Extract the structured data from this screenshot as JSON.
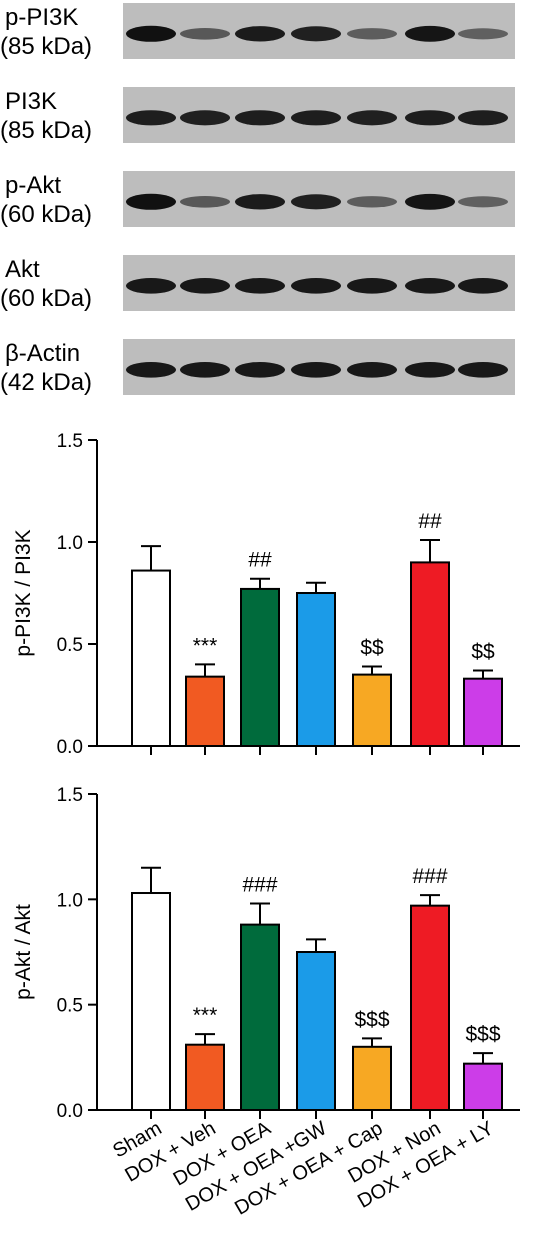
{
  "blots": [
    {
      "name": "p-PI3K",
      "size": "(85 kDa)",
      "intensities": [
        1.0,
        0.45,
        0.92,
        0.88,
        0.42,
        0.98,
        0.38
      ]
    },
    {
      "name": "PI3K",
      "size": "(85 kDa)",
      "intensities": [
        0.9,
        0.88,
        0.9,
        0.9,
        0.88,
        0.9,
        0.9
      ]
    },
    {
      "name": "p-Akt",
      "size": "(60 kDa)",
      "intensities": [
        1.0,
        0.45,
        0.92,
        0.88,
        0.42,
        0.98,
        0.38
      ]
    },
    {
      "name": "Akt",
      "size": "(60 kDa)",
      "intensities": [
        0.95,
        0.95,
        0.95,
        0.95,
        0.95,
        0.95,
        0.95
      ]
    },
    {
      "name": "β-Actin",
      "size": "(42 kDa)",
      "intensities": [
        0.95,
        0.95,
        0.95,
        0.95,
        0.95,
        0.95,
        0.95
      ]
    }
  ],
  "colors": {
    "bars": [
      "#ffffff",
      "#f15a22",
      "#006b3c",
      "#1b9be8",
      "#f7a823",
      "#ee1b24",
      "#cc3de8"
    ],
    "blot_bg": "#bdbdbd",
    "band": "#111111"
  },
  "chart_data": [
    {
      "type": "bar",
      "title": "",
      "xlabel": "",
      "ylabel": "p-PI3K / PI3K",
      "ylim": [
        0,
        1.5
      ],
      "yticks": [
        "0.0",
        "0.5",
        "1.0",
        "1.5"
      ],
      "categories": [
        "Sham",
        "DOX + Veh",
        "DOX + OEA",
        "DOX + OEA +GW",
        "DOX + OEA + Cap",
        "DOX + Non",
        "DOX + OEA + LY"
      ],
      "values": [
        0.86,
        0.34,
        0.77,
        0.75,
        0.35,
        0.9,
        0.33
      ],
      "errors": [
        0.12,
        0.06,
        0.05,
        0.05,
        0.04,
        0.11,
        0.04
      ],
      "annotations": [
        "",
        "***",
        "##",
        "",
        "$$",
        "##",
        "$$"
      ]
    },
    {
      "type": "bar",
      "title": "",
      "xlabel": "",
      "ylabel": "p-Akt / Akt",
      "ylim": [
        0,
        1.5
      ],
      "yticks": [
        "0.0",
        "0.5",
        "1.0",
        "1.5"
      ],
      "categories": [
        "Sham",
        "DOX + Veh",
        "DOX + OEA",
        "DOX + OEA +GW",
        "DOX + OEA + Cap",
        "DOX + Non",
        "DOX + OEA + LY"
      ],
      "values": [
        1.03,
        0.31,
        0.88,
        0.75,
        0.3,
        0.97,
        0.22
      ],
      "errors": [
        0.12,
        0.05,
        0.1,
        0.06,
        0.04,
        0.05,
        0.05
      ],
      "annotations": [
        "",
        "***",
        "###",
        "",
        "$$$",
        "###",
        "$$$"
      ]
    }
  ]
}
